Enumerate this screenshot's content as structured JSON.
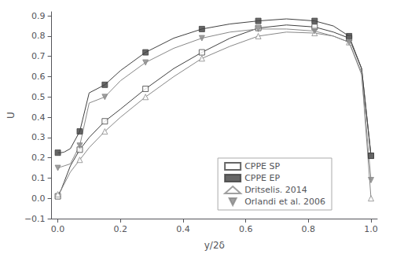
{
  "chart_data": {
    "type": "line",
    "xlabel": "y/2δ",
    "ylabel": "U",
    "xlim": [
      -0.02,
      1.02
    ],
    "ylim": [
      -0.1,
      0.92
    ],
    "xticks": [
      {
        "value": 0.0,
        "label": "0.0"
      },
      0.2,
      0.4,
      0.6,
      0.8,
      {
        "value": 1.0,
        "label": "1.0"
      }
    ],
    "yticks": [
      {
        "value": -0.1,
        "label": "−0.1"
      },
      {
        "value": 0.0,
        "label": "0.0"
      },
      0.1,
      0.2,
      0.3,
      0.4,
      0.5,
      0.6,
      0.7,
      0.8,
      0.9
    ],
    "grid": false,
    "legend": "lower right",
    "series": [
      {
        "name": "CPPE SP",
        "color": "#404040",
        "marker": "square-open",
        "x": [
          0.0,
          0.01,
          0.02,
          0.04,
          0.07,
          0.1,
          0.15,
          0.2,
          0.28,
          0.37,
          0.46,
          0.55,
          0.64,
          0.73,
          0.82,
          0.88,
          0.93,
          0.97,
          1.0
        ],
        "values": [
          0.01,
          0.04,
          0.08,
          0.16,
          0.24,
          0.3,
          0.38,
          0.44,
          0.54,
          0.64,
          0.72,
          0.79,
          0.84,
          0.855,
          0.845,
          0.82,
          0.79,
          0.64,
          0.21
        ],
        "marker_x": [
          0.0,
          0.07,
          0.15,
          0.28,
          0.46,
          0.64,
          0.82,
          0.93,
          1.0
        ],
        "marker_values": [
          0.01,
          0.24,
          0.38,
          0.54,
          0.72,
          0.84,
          0.845,
          0.79,
          0.21
        ]
      },
      {
        "name": "CPPE EP",
        "color": "#404040",
        "marker": "square",
        "x": [
          0.0,
          0.01,
          0.02,
          0.04,
          0.07,
          0.1,
          0.15,
          0.2,
          0.28,
          0.37,
          0.46,
          0.55,
          0.64,
          0.73,
          0.82,
          0.88,
          0.93,
          0.97,
          1.0
        ],
        "values": [
          0.225,
          0.225,
          0.228,
          0.245,
          0.33,
          0.52,
          0.56,
          0.63,
          0.72,
          0.79,
          0.835,
          0.86,
          0.875,
          0.885,
          0.875,
          0.85,
          0.8,
          0.64,
          0.21
        ],
        "marker_x": [
          0.0,
          0.07,
          0.15,
          0.28,
          0.46,
          0.64,
          0.82,
          0.93,
          1.0
        ],
        "marker_values": [
          0.225,
          0.33,
          0.56,
          0.72,
          0.835,
          0.875,
          0.875,
          0.8,
          0.21
        ]
      },
      {
        "name": "Dritselis. 2014",
        "color": "#888888",
        "marker": "triangle-up-open",
        "x": [
          0.0,
          0.01,
          0.02,
          0.04,
          0.07,
          0.1,
          0.15,
          0.2,
          0.28,
          0.37,
          0.46,
          0.55,
          0.64,
          0.73,
          0.82,
          0.88,
          0.93,
          0.97,
          1.0
        ],
        "values": [
          0.02,
          0.04,
          0.07,
          0.13,
          0.19,
          0.25,
          0.33,
          0.4,
          0.5,
          0.6,
          0.69,
          0.75,
          0.8,
          0.82,
          0.815,
          0.8,
          0.77,
          0.62,
          0.0
        ],
        "marker_x": [
          0.0,
          0.07,
          0.15,
          0.28,
          0.46,
          0.64,
          0.82,
          0.93,
          1.0
        ],
        "marker_values": [
          0.02,
          0.19,
          0.33,
          0.5,
          0.69,
          0.8,
          0.815,
          0.77,
          0.0
        ]
      },
      {
        "name": "Orlandi et al. 2006",
        "color": "#888888",
        "marker": "triangle-down",
        "x": [
          0.0,
          0.01,
          0.02,
          0.04,
          0.07,
          0.1,
          0.15,
          0.2,
          0.28,
          0.37,
          0.46,
          0.55,
          0.64,
          0.73,
          0.82,
          0.88,
          0.93,
          0.97,
          1.0
        ],
        "values": [
          0.15,
          0.155,
          0.16,
          0.17,
          0.26,
          0.47,
          0.5,
          0.58,
          0.67,
          0.74,
          0.79,
          0.82,
          0.835,
          0.835,
          0.825,
          0.8,
          0.77,
          0.61,
          0.09
        ],
        "marker_x": [
          0.0,
          0.07,
          0.15,
          0.28,
          0.46,
          0.64,
          0.82,
          0.93,
          1.0
        ],
        "marker_values": [
          0.15,
          0.26,
          0.5,
          0.67,
          0.79,
          0.835,
          0.825,
          0.77,
          0.09
        ]
      }
    ]
  }
}
